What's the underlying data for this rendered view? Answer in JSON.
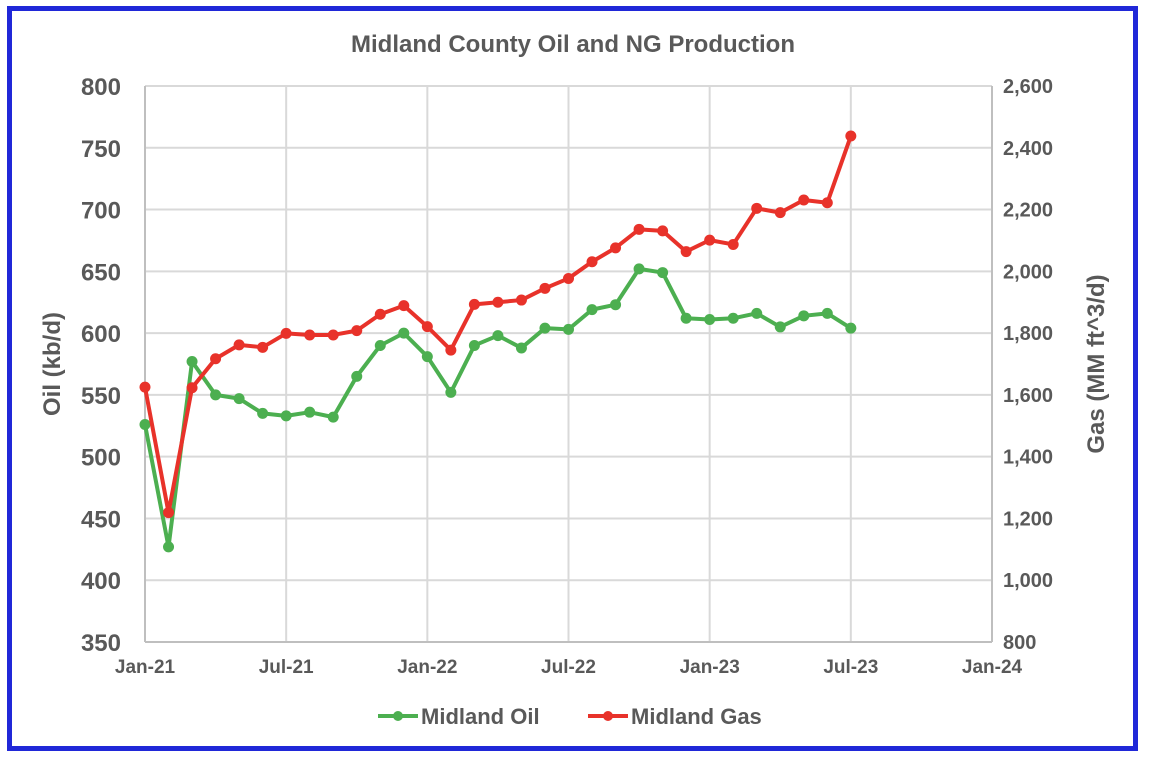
{
  "chart_data": {
    "type": "line",
    "title": "Midland County Oil and NG Production",
    "xlabel": "",
    "ylabel": "Oil (kb/d)",
    "ylabel_right": "Gas (MM ft^3/d)",
    "ylim": [
      350,
      800
    ],
    "ylim_right": [
      800,
      2600
    ],
    "yticks": [
      "800",
      "750",
      "700",
      "650",
      "600",
      "550",
      "500",
      "450",
      "400",
      "350"
    ],
    "yticks_right": [
      "2,600",
      "2,400",
      "2,200",
      "2,000",
      "1,800",
      "1,600",
      "1,400",
      "1,200",
      "1,000",
      "800"
    ],
    "xticks": [
      "Jan-21",
      "Jul-21",
      "Jan-22",
      "Jul-22",
      "Jan-23",
      "Jul-23",
      "Jan-24"
    ],
    "grid": true,
    "legend_position": "bottom",
    "x": [
      "Jan-21",
      "Feb-21",
      "Mar-21",
      "Apr-21",
      "May-21",
      "Jun-21",
      "Jul-21",
      "Aug-21",
      "Sep-21",
      "Oct-21",
      "Nov-21",
      "Dec-21",
      "Jan-22",
      "Feb-22",
      "Mar-22",
      "Apr-22",
      "May-22",
      "Jun-22",
      "Jul-22",
      "Aug-22",
      "Sep-22",
      "Oct-22",
      "Nov-22",
      "Dec-22",
      "Jan-23",
      "Feb-23",
      "Mar-23",
      "Apr-23",
      "May-23",
      "Jun-23",
      "Jul-23"
    ],
    "series": [
      {
        "name": "Midland Oil",
        "axis": "left",
        "color": "#4caf50",
        "values": [
          526,
          427,
          577,
          550,
          547,
          535,
          533,
          536,
          532,
          565,
          590,
          600,
          581,
          552,
          590,
          598,
          588,
          604,
          603,
          619,
          623,
          652,
          649,
          612,
          611,
          612,
          616,
          605,
          614,
          616,
          604
        ]
      },
      {
        "name": "Midland Gas",
        "axis": "right",
        "color": "#e8322a",
        "values": [
          1625,
          1219,
          1623,
          1717,
          1762,
          1754,
          1799,
          1794,
          1794,
          1808,
          1861,
          1889,
          1821,
          1745,
          1893,
          1900,
          1907,
          1945,
          1977,
          2031,
          2076,
          2136,
          2131,
          2064,
          2101,
          2087,
          2204,
          2190,
          2231,
          2222,
          2438
        ]
      }
    ]
  },
  "colors": {
    "frame": "#2028d8",
    "grid": "#d9d9d9",
    "text": "#595959"
  }
}
